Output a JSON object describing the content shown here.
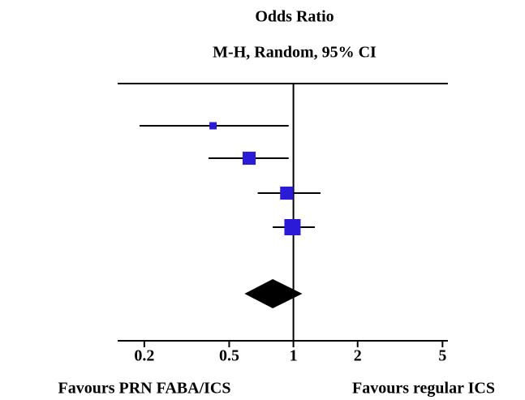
{
  "chart_data": {
    "type": "forest",
    "title": "Odds Ratio",
    "subtitle": "M-H, Random, 95% CI",
    "label_left": "Favours PRN FABA/ICS",
    "label_right": "Favours regular ICS",
    "log_scale": true,
    "xlim": [
      0.15,
      5.3
    ],
    "xticks": [
      0.2,
      0.5,
      1,
      2,
      5
    ],
    "reference": 1,
    "color": "#2a1bd6",
    "estimates": [
      0.42,
      0.62,
      0.93,
      0.99
    ],
    "lower": [
      0.19,
      0.4,
      0.68,
      0.8
    ],
    "upper": [
      0.95,
      0.95,
      1.34,
      1.26
    ],
    "weights": [
      8,
      26,
      26,
      40
    ],
    "pooled": {
      "estimate": 0.8,
      "lower": 0.59,
      "upper": 1.1,
      "color": "#000000"
    }
  }
}
